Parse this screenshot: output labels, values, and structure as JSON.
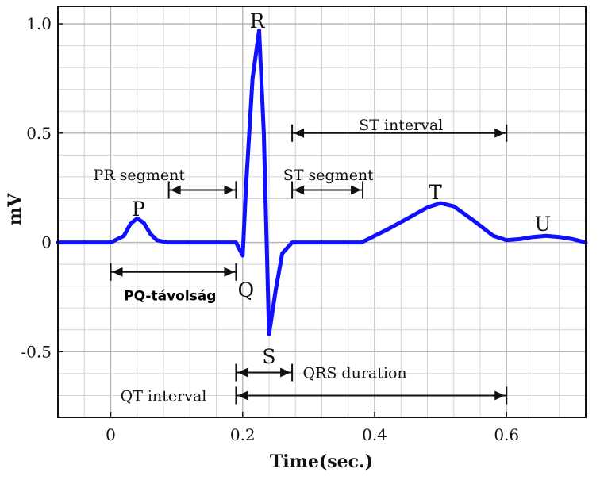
{
  "chart_data": {
    "type": "line",
    "title": "",
    "xlabel": "Time(sec.)",
    "ylabel": "mV",
    "xlim": [
      -0.08,
      0.72
    ],
    "ylim": [
      -0.8,
      1.08
    ],
    "x_ticks": [
      0,
      0.2,
      0.4,
      0.6
    ],
    "x_tick_labels": [
      "0",
      "0.2",
      "0.4",
      "0.6"
    ],
    "y_ticks": [
      -0.5,
      0,
      0.5,
      1.0
    ],
    "y_tick_labels": [
      "-0.5",
      "0",
      "0.5",
      "1.0"
    ],
    "grid": true,
    "series": [
      {
        "color": "#1010ff",
        "x": [
          -0.08,
          0.0,
          0.02,
          0.03,
          0.04,
          0.05,
          0.06,
          0.07,
          0.085,
          0.1,
          0.15,
          0.19,
          0.2,
          0.205,
          0.215,
          0.225,
          0.232,
          0.24,
          0.25,
          0.26,
          0.275,
          0.3,
          0.38,
          0.42,
          0.45,
          0.48,
          0.5,
          0.52,
          0.55,
          0.58,
          0.6,
          0.62,
          0.64,
          0.66,
          0.68,
          0.7,
          0.72
        ],
        "y": [
          0,
          0,
          0.03,
          0.085,
          0.11,
          0.09,
          0.04,
          0.01,
          0,
          0,
          0,
          0,
          -0.06,
          0.25,
          0.75,
          0.97,
          0.5,
          -0.42,
          -0.22,
          -0.05,
          0,
          0,
          0,
          0.06,
          0.11,
          0.16,
          0.18,
          0.165,
          0.1,
          0.03,
          0.01,
          0.015,
          0.025,
          0.03,
          0.025,
          0.015,
          0
        ]
      }
    ],
    "wave_labels": [
      {
        "text": "P",
        "x": 0.042,
        "y": 0.155
      },
      {
        "text": "Q",
        "x": 0.205,
        "y": -0.215
      },
      {
        "text": "R",
        "x": 0.222,
        "y": 1.015
      },
      {
        "text": "S",
        "x": 0.24,
        "y": -0.52
      },
      {
        "text": "T",
        "x": 0.492,
        "y": 0.23
      },
      {
        "text": "U",
        "x": 0.655,
        "y": 0.085
      }
    ],
    "annotations": [
      {
        "text": "ST interval",
        "x1": 0.275,
        "x2": 0.6,
        "y": 0.5,
        "label_x": 0.44,
        "label_y": 0.54
      },
      {
        "text": "PR segment",
        "x1": 0.088,
        "x2": 0.19,
        "y": 0.24,
        "label_x": 0.043,
        "label_y": 0.31
      },
      {
        "text": "ST segment",
        "x1": 0.275,
        "x2": 0.382,
        "y": 0.24,
        "label_x": 0.33,
        "label_y": 0.31
      },
      {
        "text": "PQ-távolság",
        "x1": 0.0,
        "x2": 0.19,
        "y": -0.135,
        "label_x": 0.09,
        "label_y": -0.24
      },
      {
        "text": "QRS duration",
        "x1": 0.19,
        "x2": 0.275,
        "y": -0.595,
        "label_x": 0.37,
        "label_y": -0.595
      },
      {
        "text": "QT interval",
        "x1": 0.19,
        "x2": 0.6,
        "y": -0.7,
        "label_x": 0.08,
        "label_y": -0.7
      }
    ]
  }
}
